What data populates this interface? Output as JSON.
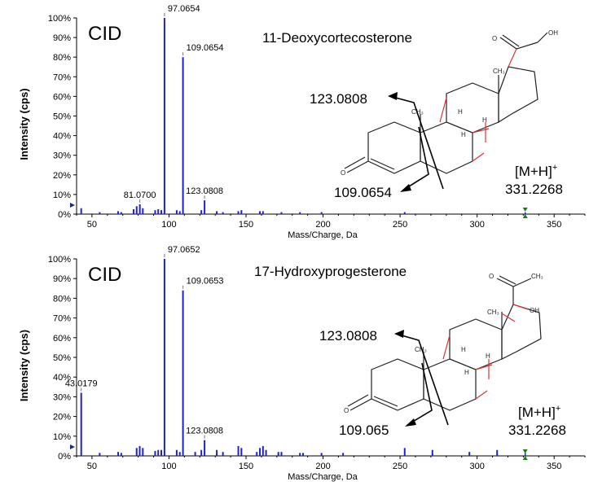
{
  "panels": [
    {
      "label": "CID",
      "compound": "11-Deoxycortecosterone",
      "fragment_labels": [
        "123.0808",
        "109.0654"
      ],
      "precursor_line1": "[M+H]",
      "precursor_sup": "+",
      "precursor_line2": "331.2268"
    },
    {
      "label": "CID",
      "compound": "17-Hydroxyprogesterone",
      "fragment_labels": [
        "123.0808",
        "109.065"
      ],
      "precursor_line1": "[M+H]",
      "precursor_sup": "+",
      "precursor_line2": "331.2268"
    }
  ],
  "chart_data": [
    {
      "type": "bar",
      "title": "11-Deoxycortecosterone",
      "xlabel": "Mass/Charge, Da",
      "ylabel": "Intensity (cps)",
      "xlim": [
        40,
        370
      ],
      "ylim": [
        0,
        100
      ],
      "x_ticks": [
        50,
        100,
        150,
        200,
        250,
        300,
        350
      ],
      "y_ticks": [
        "0%",
        "10%",
        "20%",
        "30%",
        "40%",
        "50%",
        "60%",
        "70%",
        "80%",
        "90%",
        "100%"
      ],
      "bar_color": "#2020d0",
      "peaks": [
        {
          "mz": 43.0,
          "intensity": 3
        },
        {
          "mz": 55.0,
          "intensity": 1
        },
        {
          "mz": 67.0,
          "intensity": 1.5
        },
        {
          "mz": 69.0,
          "intensity": 1
        },
        {
          "mz": 77.0,
          "intensity": 2.5
        },
        {
          "mz": 79.0,
          "intensity": 4
        },
        {
          "mz": 81.07,
          "intensity": 5,
          "label": "81.0700"
        },
        {
          "mz": 83.0,
          "intensity": 3
        },
        {
          "mz": 91.0,
          "intensity": 2
        },
        {
          "mz": 93.0,
          "intensity": 2.5
        },
        {
          "mz": 95.0,
          "intensity": 2
        },
        {
          "mz": 97.0654,
          "intensity": 100,
          "label": "97.0654"
        },
        {
          "mz": 105.0,
          "intensity": 2
        },
        {
          "mz": 107.0,
          "intensity": 1.5
        },
        {
          "mz": 109.0654,
          "intensity": 80,
          "label": "109.0654"
        },
        {
          "mz": 121.0,
          "intensity": 2
        },
        {
          "mz": 123.0808,
          "intensity": 7,
          "label": "123.0808"
        },
        {
          "mz": 131.0,
          "intensity": 1.5
        },
        {
          "mz": 135.0,
          "intensity": 1
        },
        {
          "mz": 145.0,
          "intensity": 1.5
        },
        {
          "mz": 147.0,
          "intensity": 2
        },
        {
          "mz": 159.0,
          "intensity": 1.5
        },
        {
          "mz": 161.0,
          "intensity": 1.5
        },
        {
          "mz": 173.0,
          "intensity": 1
        },
        {
          "mz": 185.0,
          "intensity": 1
        },
        {
          "mz": 199.0,
          "intensity": 1
        },
        {
          "mz": 253.0,
          "intensity": 1
        },
        {
          "mz": 331.2268,
          "intensity": 1,
          "label": "[M+H]+ 331.2268"
        }
      ]
    },
    {
      "type": "bar",
      "title": "17-Hydroxyprogesterone",
      "xlabel": "Mass/Charge, Da",
      "ylabel": "Intensity (cps)",
      "xlim": [
        40,
        370
      ],
      "ylim": [
        0,
        100
      ],
      "x_ticks": [
        50,
        100,
        150,
        200,
        250,
        300,
        350
      ],
      "y_ticks": [
        "0%",
        "10%",
        "20%",
        "30%",
        "40%",
        "50%",
        "60%",
        "70%",
        "80%",
        "90%",
        "100%"
      ],
      "bar_color": "#2020d0",
      "peaks": [
        {
          "mz": 43.0179,
          "intensity": 32,
          "label": "43.0179"
        },
        {
          "mz": 55.0,
          "intensity": 1.5
        },
        {
          "mz": 67.0,
          "intensity": 2
        },
        {
          "mz": 69.0,
          "intensity": 1.5
        },
        {
          "mz": 79.0,
          "intensity": 4
        },
        {
          "mz": 81.0,
          "intensity": 5
        },
        {
          "mz": 83.0,
          "intensity": 4
        },
        {
          "mz": 91.0,
          "intensity": 2.5
        },
        {
          "mz": 93.0,
          "intensity": 3
        },
        {
          "mz": 95.0,
          "intensity": 3
        },
        {
          "mz": 97.0652,
          "intensity": 100,
          "label": "97.0652"
        },
        {
          "mz": 105.0,
          "intensity": 3
        },
        {
          "mz": 107.0,
          "intensity": 2
        },
        {
          "mz": 109.0653,
          "intensity": 84,
          "label": "109.0653"
        },
        {
          "mz": 117.0,
          "intensity": 2
        },
        {
          "mz": 121.0,
          "intensity": 3
        },
        {
          "mz": 123.0808,
          "intensity": 8,
          "label": "123.0808"
        },
        {
          "mz": 131.0,
          "intensity": 3
        },
        {
          "mz": 135.0,
          "intensity": 2
        },
        {
          "mz": 145.0,
          "intensity": 5
        },
        {
          "mz": 147.0,
          "intensity": 4
        },
        {
          "mz": 157.0,
          "intensity": 2
        },
        {
          "mz": 159.0,
          "intensity": 4
        },
        {
          "mz": 161.0,
          "intensity": 5
        },
        {
          "mz": 163.0,
          "intensity": 3
        },
        {
          "mz": 171.0,
          "intensity": 2
        },
        {
          "mz": 173.0,
          "intensity": 2
        },
        {
          "mz": 185.0,
          "intensity": 1.5
        },
        {
          "mz": 187.0,
          "intensity": 1.5
        },
        {
          "mz": 199.0,
          "intensity": 1.5
        },
        {
          "mz": 213.0,
          "intensity": 1.5
        },
        {
          "mz": 253.0,
          "intensity": 4
        },
        {
          "mz": 271.0,
          "intensity": 3
        },
        {
          "mz": 295.0,
          "intensity": 2
        },
        {
          "mz": 313.0,
          "intensity": 3
        },
        {
          "mz": 331.2268,
          "intensity": 2,
          "label": "[M+H]+ 331.2268"
        }
      ]
    }
  ]
}
